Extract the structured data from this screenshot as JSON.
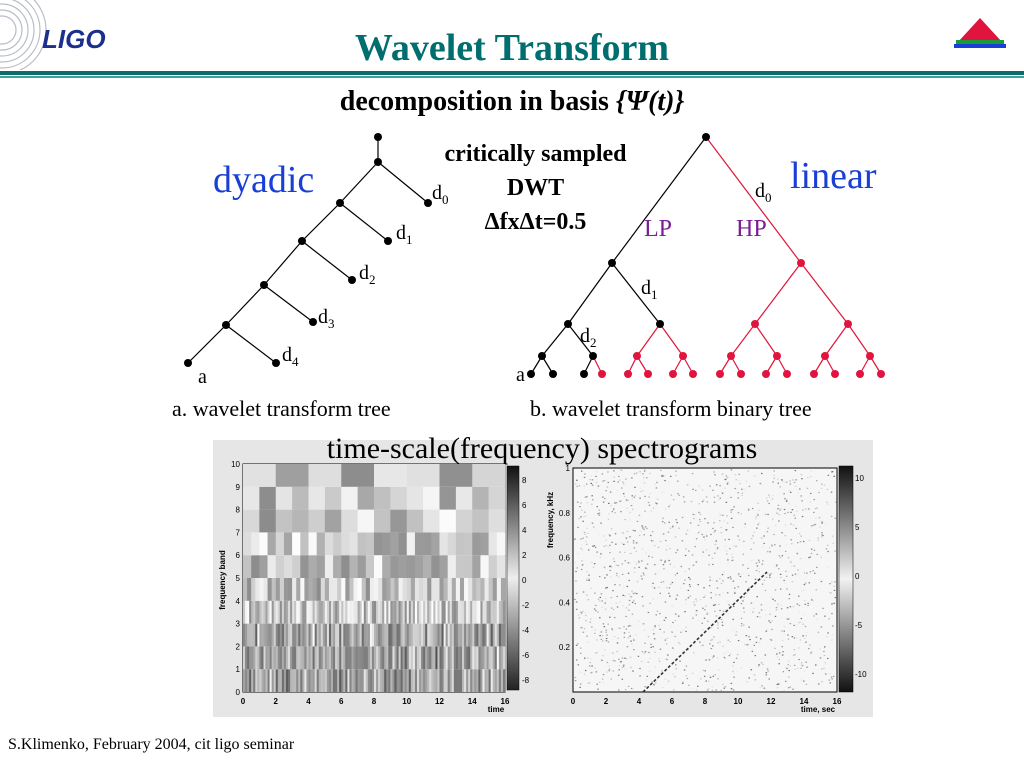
{
  "header": {
    "logo_text": "LIGO",
    "title": "Wavelet Transform",
    "subtitle_prefix": "decomposition in basis ",
    "subtitle_math": "{Ψ(t)}"
  },
  "left_tree": {
    "label": "dyadic",
    "leaf_a": "a",
    "detail_labels": [
      "d0",
      "d1",
      "d2",
      "d3",
      "d4"
    ],
    "caption_letter": "a.",
    "caption_text": "wavelet transform tree"
  },
  "center_note": {
    "line1": "critically sampled",
    "line2": "DWT",
    "line3": "ΔfxΔt=0.5"
  },
  "right_tree": {
    "label": "linear",
    "leaf_a": "a",
    "lp": "LP",
    "hp": "HP",
    "detail_labels": [
      "d0",
      "d1",
      "d2"
    ],
    "caption_letter": "b.",
    "caption_text": "wavelet transform binary tree"
  },
  "spectrograms": {
    "title": "time-scale(frequency) spectrograms",
    "left": {
      "ylabel": "frequency band",
      "xlabel": "time",
      "yticks": [
        "0",
        "1",
        "2",
        "3",
        "4",
        "5",
        "6",
        "7",
        "8",
        "9",
        "10"
      ],
      "xticks": [
        "0",
        "2",
        "4",
        "6",
        "8",
        "10",
        "12",
        "14",
        "16"
      ],
      "colorbar_ticks": [
        "8",
        "6",
        "4",
        "2",
        "0",
        "-2",
        "-4",
        "-6",
        "-8"
      ]
    },
    "right": {
      "ylabel": "frequency, kHz",
      "xlabel": "time, sec",
      "yticks": [
        "0.2",
        "0.4",
        "0.6",
        "0.8",
        "1"
      ],
      "xticks": [
        "0",
        "2",
        "4",
        "6",
        "8",
        "10",
        "12",
        "14",
        "16"
      ],
      "colorbar_ticks": [
        "10",
        "5",
        "0",
        "-5",
        "-10"
      ]
    }
  },
  "footer": "S.Klimenko, February 2004, cit ligo seminar",
  "colors": {
    "title": "#006e6e",
    "blue_label": "#1a3fd6",
    "purple_label": "#7a1e96",
    "hp_tree": "#e0143c",
    "logo_triangle_top": "#e0143c",
    "logo_triangle_mid": "#1a9a3c",
    "logo_triangle_bottom": "#1a3fd6"
  }
}
